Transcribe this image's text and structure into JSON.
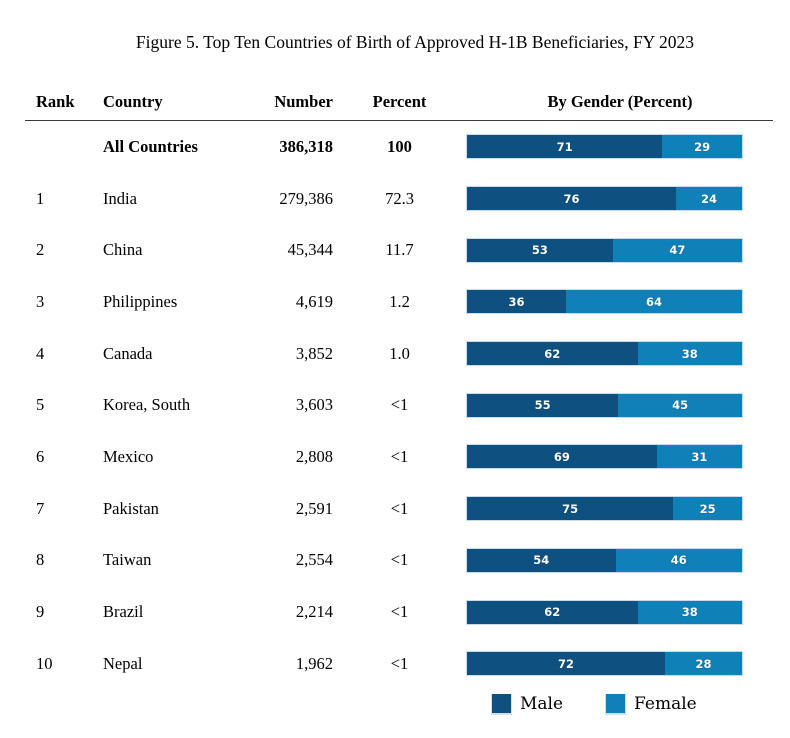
{
  "title": "Figure 5. Top Ten Countries of Birth of Approved H-1B Beneficiaries, FY 2023",
  "colors": {
    "male": "#0e5181",
    "female": "#0f80b8"
  },
  "table": {
    "headers": {
      "rank": "Rank",
      "country": "Country",
      "number": "Number",
      "percent": "Percent",
      "gender": "By Gender (Percent)"
    },
    "rows": [
      {
        "rank": "",
        "country": "All Countries",
        "number": "386,318",
        "percent": "100",
        "male": 71,
        "female": 29,
        "bold": true
      },
      {
        "rank": "1",
        "country": "India",
        "number": "279,386",
        "percent": "72.3",
        "male": 76,
        "female": 24,
        "bold": false
      },
      {
        "rank": "2",
        "country": "China",
        "number": "45,344",
        "percent": "11.7",
        "male": 53,
        "female": 47,
        "bold": false
      },
      {
        "rank": "3",
        "country": "Philippines",
        "number": "4,619",
        "percent": "1.2",
        "male": 36,
        "female": 64,
        "bold": false
      },
      {
        "rank": "4",
        "country": "Canada",
        "number": "3,852",
        "percent": "1.0",
        "male": 62,
        "female": 38,
        "bold": false
      },
      {
        "rank": "5",
        "country": "Korea, South",
        "number": "3,603",
        "percent": "<1",
        "male": 55,
        "female": 45,
        "bold": false
      },
      {
        "rank": "6",
        "country": "Mexico",
        "number": "2,808",
        "percent": "<1",
        "male": 69,
        "female": 31,
        "bold": false
      },
      {
        "rank": "7",
        "country": "Pakistan",
        "number": "2,591",
        "percent": "<1",
        "male": 75,
        "female": 25,
        "bold": false
      },
      {
        "rank": "8",
        "country": "Taiwan",
        "number": "2,554",
        "percent": "<1",
        "male": 54,
        "female": 46,
        "bold": false
      },
      {
        "rank": "9",
        "country": "Brazil",
        "number": "2,214",
        "percent": "<1",
        "male": 62,
        "female": 38,
        "bold": false
      },
      {
        "rank": "10",
        "country": "Nepal",
        "number": "1,962",
        "percent": "<1",
        "male": 72,
        "female": 28,
        "bold": false
      }
    ]
  },
  "legend": {
    "male_label": "Male",
    "female_label": "Female"
  },
  "chart_data": {
    "type": "bar",
    "subtype": "horizontal-stacked-100pct",
    "title": "Figure 5. Top Ten Countries of Birth of Approved H-1B Beneficiaries, FY 2023",
    "categories": [
      "All Countries",
      "India",
      "China",
      "Philippines",
      "Canada",
      "Korea, South",
      "Mexico",
      "Pakistan",
      "Taiwan",
      "Brazil",
      "Nepal"
    ],
    "series": [
      {
        "name": "Male",
        "color": "#0e5181",
        "values": [
          71,
          76,
          53,
          36,
          62,
          55,
          69,
          75,
          54,
          62,
          72
        ]
      },
      {
        "name": "Female",
        "color": "#0f80b8",
        "values": [
          29,
          24,
          47,
          64,
          38,
          45,
          31,
          25,
          46,
          38,
          28
        ]
      }
    ],
    "table_columns": {
      "rank": [
        null,
        1,
        2,
        3,
        4,
        5,
        6,
        7,
        8,
        9,
        10
      ],
      "number": [
        386318,
        279386,
        45344,
        4619,
        3852,
        3603,
        2808,
        2591,
        2554,
        2214,
        1962
      ],
      "percent": [
        "100",
        "72.3",
        "11.7",
        "1.2",
        "1.0",
        "<1",
        "<1",
        "<1",
        "<1",
        "<1",
        "<1"
      ]
    },
    "xlabel": "By Gender (Percent)",
    "xlim": [
      0,
      100
    ],
    "grid": false,
    "legend_position": "bottom",
    "data_labels": "inside-center-white-bold"
  }
}
